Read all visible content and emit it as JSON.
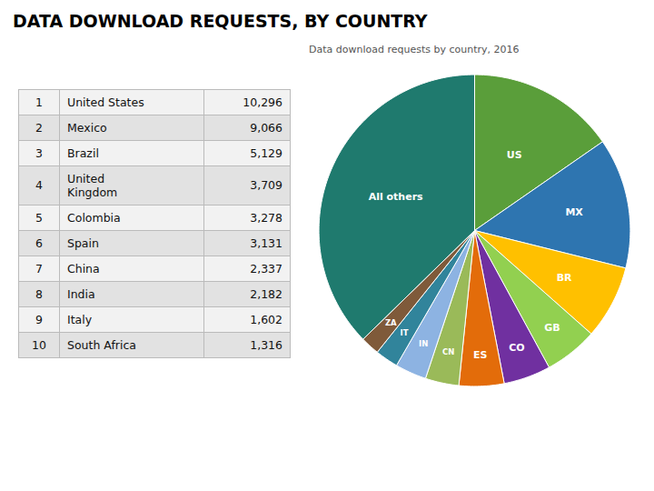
{
  "title": "DATA DOWNLOAD REQUESTS, BY COUNTRY",
  "chart_data": [
    {
      "type": "table",
      "rows": [
        [
          1,
          "United States",
          "10,296"
        ],
        [
          2,
          "Mexico",
          "9,066"
        ],
        [
          3,
          "Brazil",
          "5,129"
        ],
        [
          4,
          "United\nKingdom",
          "3,709"
        ],
        [
          5,
          "Colombia",
          "3,278"
        ],
        [
          6,
          "Spain",
          "3,131"
        ],
        [
          7,
          "China",
          "2,337"
        ],
        [
          8,
          "India",
          "2,182"
        ],
        [
          9,
          "Italy",
          "1,602"
        ],
        [
          10,
          "South Africa",
          "1,316"
        ]
      ]
    },
    {
      "type": "pie",
      "title": "Data download requests by country, 2016",
      "categories": [
        "US",
        "MX",
        "BR",
        "GB",
        "CO",
        "ES",
        "CN",
        "IN",
        "IT",
        "ZA",
        "All others"
      ],
      "values": [
        10296,
        9066,
        5129,
        3709,
        3278,
        3131,
        2337,
        2182,
        1602,
        1316,
        25000
      ],
      "colors": [
        "#5a9e3a",
        "#2e75b0",
        "#ffc000",
        "#92d050",
        "#7030a0",
        "#e36c0a",
        "#9aba59",
        "#8db3e2",
        "#31849b",
        "#7f5a3a",
        "#1f7a6e"
      ],
      "data_labels": true
    }
  ]
}
